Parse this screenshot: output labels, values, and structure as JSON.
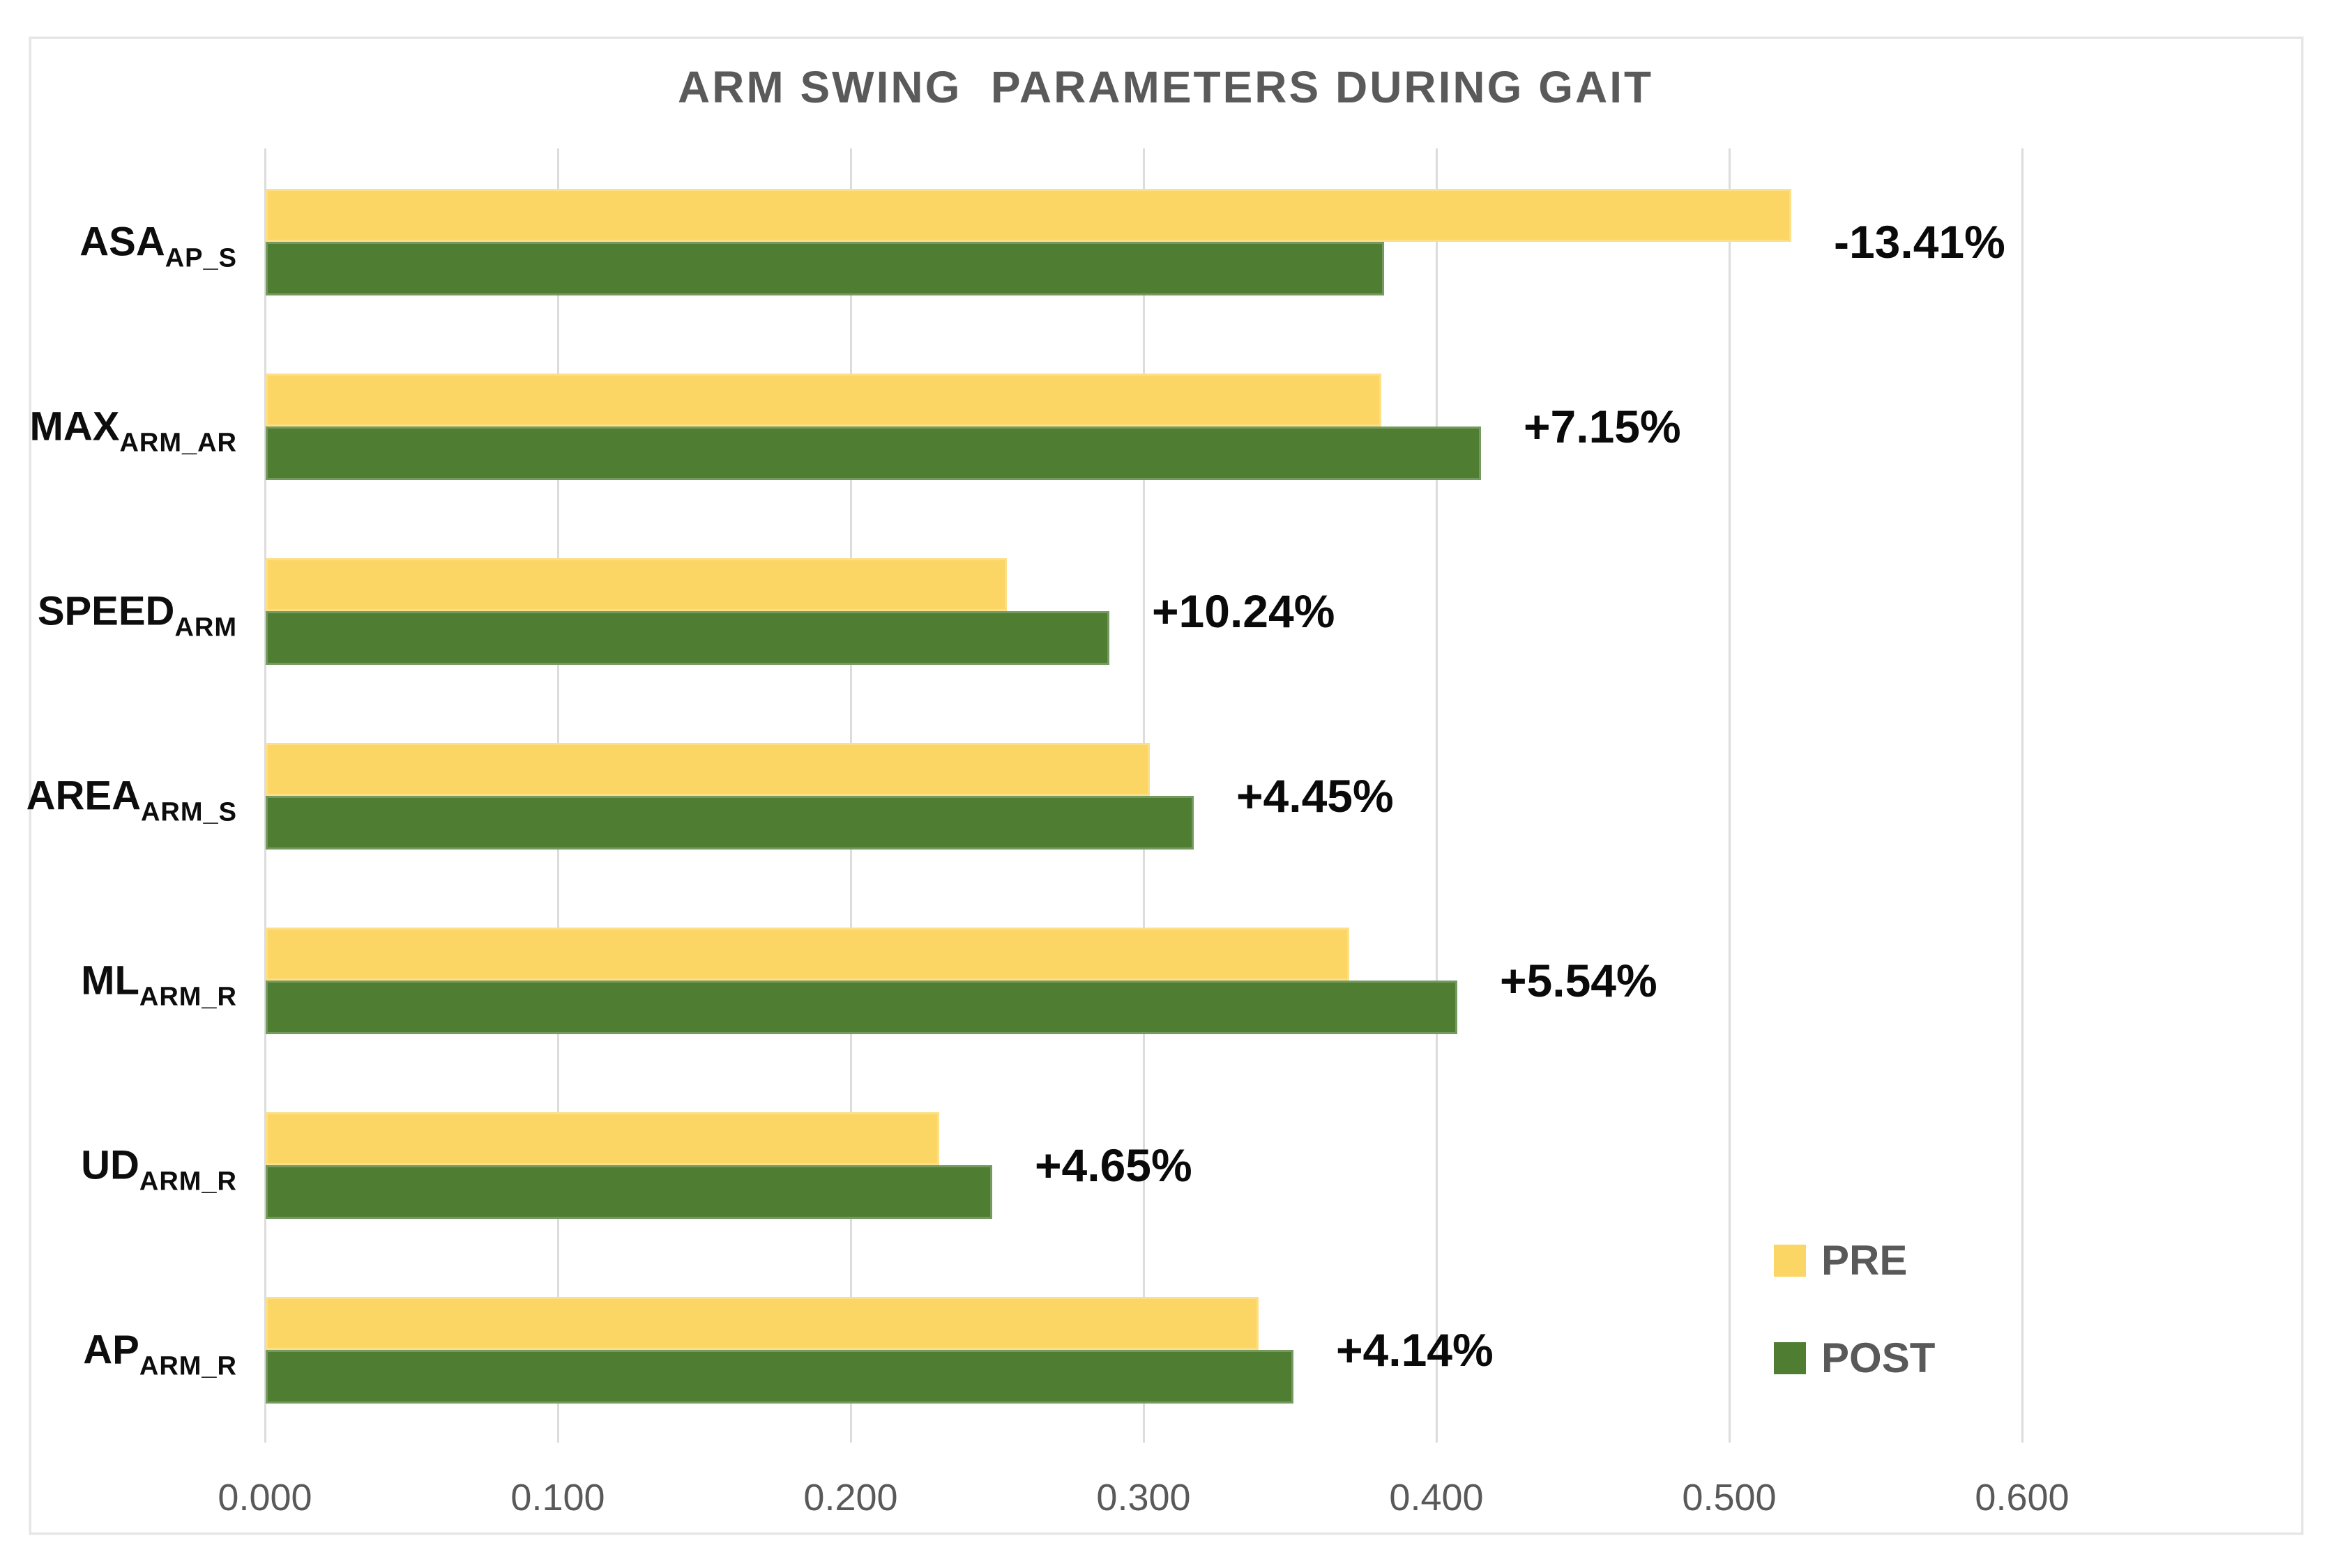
{
  "title": "ARM SWING  PARAMETERS DURING GAIT",
  "legend": [
    {
      "label": "PRE",
      "color": "#FCD664"
    },
    {
      "label": "POST",
      "color": "#4F7E32"
    }
  ],
  "colors": {
    "pre_bar": "#FCD664",
    "post_bar": "#4F7E32",
    "title_text": "#5a5a5a",
    "axis_text": "#595959",
    "gridline": "#dcdcdc",
    "annotation_text": "#0a0a0a"
  },
  "chart_data": {
    "type": "bar",
    "orientation": "horizontal",
    "title": "ARM SWING PARAMETERS DURING GAIT",
    "xlim": [
      0.0,
      0.6
    ],
    "x_ticks": [
      "0.000",
      "0.100",
      "0.200",
      "0.300",
      "0.400",
      "0.500",
      "0.600"
    ],
    "grid": "vertical-light",
    "legend_position": "bottom-right",
    "series_order": [
      "PRE",
      "POST"
    ],
    "rows": [
      {
        "category": "ASA",
        "subscript": "AP_S",
        "pre": 0.521,
        "post": 0.382,
        "change": "-13.41%"
      },
      {
        "category": "MAX",
        "subscript": "ARM_AR",
        "pre": 0.381,
        "post": 0.415,
        "change": "+7.15%"
      },
      {
        "category": "SPEED",
        "subscript": "ARM",
        "pre": 0.253,
        "post": 0.288,
        "change": "+10.24%"
      },
      {
        "category": "AREA",
        "subscript": "ARM_S",
        "pre": 0.302,
        "post": 0.317,
        "change": "+4.45%"
      },
      {
        "category": "ML",
        "subscript": "ARM_R",
        "pre": 0.37,
        "post": 0.407,
        "change": "+5.54%"
      },
      {
        "category": "UD",
        "subscript": "ARM_R",
        "pre": 0.23,
        "post": 0.248,
        "change": "+4.65%"
      },
      {
        "category": "AP",
        "subscript": "ARM_R",
        "pre": 0.339,
        "post": 0.351,
        "change": "+4.14%"
      }
    ]
  }
}
